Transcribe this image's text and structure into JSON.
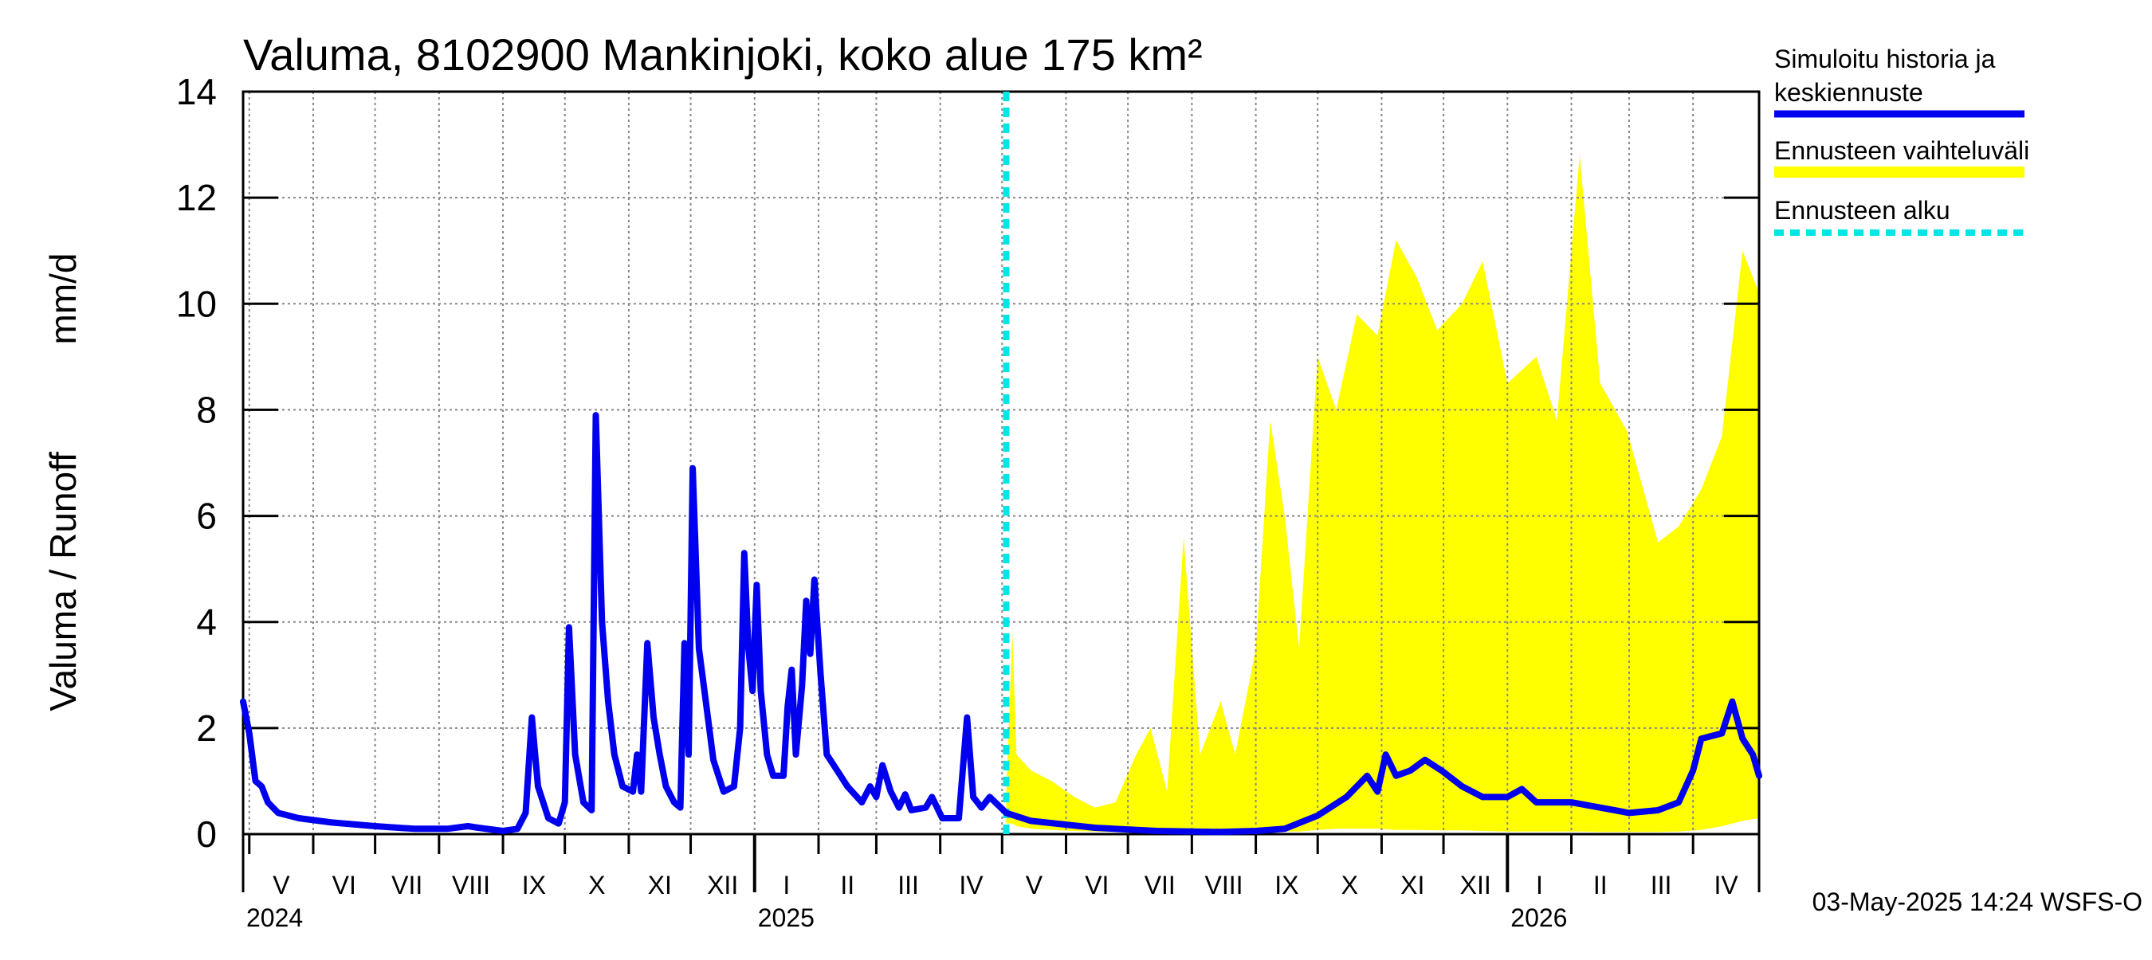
{
  "chart_data": {
    "type": "line",
    "title": "Valuma, 8102900 Mankinjoki, koko alue 175 km²",
    "ylabel_left": "Valuma / Runoff",
    "ylabel_unit": "mm/d",
    "ylim": [
      0,
      14
    ],
    "yticks": [
      "0",
      "2",
      "4",
      "6",
      "8",
      "10",
      "12",
      "14"
    ],
    "grid": true,
    "x_start": "2024-04-28",
    "x_end": "2026-05-03",
    "forecast_start": "2025-05-03",
    "months": [
      {
        "label": "V",
        "start": "2024-05-01"
      },
      {
        "label": "VI",
        "start": "2024-06-01"
      },
      {
        "label": "VII",
        "start": "2024-07-01"
      },
      {
        "label": "VIII",
        "start": "2024-08-01"
      },
      {
        "label": "IX",
        "start": "2024-09-01"
      },
      {
        "label": "X",
        "start": "2024-10-01"
      },
      {
        "label": "XI",
        "start": "2024-11-01"
      },
      {
        "label": "XII",
        "start": "2024-12-01"
      },
      {
        "label": "I",
        "start": "2025-01-01"
      },
      {
        "label": "II",
        "start": "2025-02-01"
      },
      {
        "label": "III",
        "start": "2025-03-01"
      },
      {
        "label": "IV",
        "start": "2025-04-01"
      },
      {
        "label": "V",
        "start": "2025-05-01"
      },
      {
        "label": "VI",
        "start": "2025-06-01"
      },
      {
        "label": "VII",
        "start": "2025-07-01"
      },
      {
        "label": "VIII",
        "start": "2025-08-01"
      },
      {
        "label": "IX",
        "start": "2025-09-01"
      },
      {
        "label": "X",
        "start": "2025-10-01"
      },
      {
        "label": "XI",
        "start": "2025-11-01"
      },
      {
        "label": "XII",
        "start": "2025-12-01"
      },
      {
        "label": "I",
        "start": "2026-01-01"
      },
      {
        "label": "II",
        "start": "2026-02-01"
      },
      {
        "label": "III",
        "start": "2026-03-01"
      },
      {
        "label": "IV",
        "start": "2026-04-01"
      }
    ],
    "years": [
      {
        "label": "2024",
        "date": "2024-05-01"
      },
      {
        "label": "2025",
        "date": "2025-01-01"
      },
      {
        "label": "2026",
        "date": "2026-01-01"
      }
    ],
    "series": [
      {
        "name": "Simuloitu historia ja keskiennuste",
        "color": "#0000ee",
        "points": [
          [
            "2024-04-28",
            2.5
          ],
          [
            "2024-05-01",
            1.9
          ],
          [
            "2024-05-04",
            1.0
          ],
          [
            "2024-05-07",
            0.9
          ],
          [
            "2024-05-10",
            0.6
          ],
          [
            "2024-05-15",
            0.4
          ],
          [
            "2024-05-25",
            0.3
          ],
          [
            "2024-06-10",
            0.22
          ],
          [
            "2024-07-01",
            0.15
          ],
          [
            "2024-07-20",
            0.1
          ],
          [
            "2024-08-05",
            0.1
          ],
          [
            "2024-08-15",
            0.15
          ],
          [
            "2024-08-20",
            0.12
          ],
          [
            "2024-09-01",
            0.06
          ],
          [
            "2024-09-08",
            0.1
          ],
          [
            "2024-09-12",
            0.4
          ],
          [
            "2024-09-15",
            2.2
          ],
          [
            "2024-09-18",
            0.9
          ],
          [
            "2024-09-23",
            0.3
          ],
          [
            "2024-09-28",
            0.2
          ],
          [
            "2024-10-01",
            0.6
          ],
          [
            "2024-10-03",
            3.9
          ],
          [
            "2024-10-06",
            1.5
          ],
          [
            "2024-10-10",
            0.6
          ],
          [
            "2024-10-14",
            0.45
          ],
          [
            "2024-10-16",
            7.9
          ],
          [
            "2024-10-19",
            4.0
          ],
          [
            "2024-10-22",
            2.5
          ],
          [
            "2024-10-25",
            1.5
          ],
          [
            "2024-10-29",
            0.9
          ],
          [
            "2024-11-03",
            0.8
          ],
          [
            "2024-11-05",
            1.5
          ],
          [
            "2024-11-07",
            0.8
          ],
          [
            "2024-11-10",
            3.6
          ],
          [
            "2024-11-13",
            2.2
          ],
          [
            "2024-11-16",
            1.5
          ],
          [
            "2024-11-19",
            0.9
          ],
          [
            "2024-11-23",
            0.6
          ],
          [
            "2024-11-26",
            0.5
          ],
          [
            "2024-11-28",
            3.6
          ],
          [
            "2024-11-30",
            1.5
          ],
          [
            "2024-12-02",
            6.9
          ],
          [
            "2024-12-05",
            3.5
          ],
          [
            "2024-12-08",
            2.6
          ],
          [
            "2024-12-12",
            1.4
          ],
          [
            "2024-12-17",
            0.8
          ],
          [
            "2024-12-22",
            0.9
          ],
          [
            "2024-12-25",
            2.0
          ],
          [
            "2024-12-27",
            5.3
          ],
          [
            "2024-12-29",
            3.5
          ],
          [
            "2024-12-31",
            2.7
          ],
          [
            "2025-01-02",
            4.7
          ],
          [
            "2025-01-04",
            2.7
          ],
          [
            "2025-01-07",
            1.5
          ],
          [
            "2025-01-10",
            1.1
          ],
          [
            "2025-01-15",
            1.1
          ],
          [
            "2025-01-17",
            2.4
          ],
          [
            "2025-01-19",
            3.1
          ],
          [
            "2025-01-21",
            1.5
          ],
          [
            "2025-01-24",
            2.8
          ],
          [
            "2025-01-26",
            4.4
          ],
          [
            "2025-01-28",
            3.4
          ],
          [
            "2025-01-30",
            4.8
          ],
          [
            "2025-02-02",
            3.0
          ],
          [
            "2025-02-05",
            1.5
          ],
          [
            "2025-02-10",
            1.2
          ],
          [
            "2025-02-15",
            0.9
          ],
          [
            "2025-02-22",
            0.6
          ],
          [
            "2025-02-26",
            0.9
          ],
          [
            "2025-03-01",
            0.7
          ],
          [
            "2025-03-04",
            1.3
          ],
          [
            "2025-03-08",
            0.8
          ],
          [
            "2025-03-12",
            0.5
          ],
          [
            "2025-03-15",
            0.75
          ],
          [
            "2025-03-18",
            0.45
          ],
          [
            "2025-03-25",
            0.5
          ],
          [
            "2025-03-28",
            0.7
          ],
          [
            "2025-04-02",
            0.3
          ],
          [
            "2025-04-10",
            0.3
          ],
          [
            "2025-04-14",
            2.2
          ],
          [
            "2025-04-17",
            0.7
          ],
          [
            "2025-04-21",
            0.5
          ],
          [
            "2025-04-25",
            0.7
          ],
          [
            "2025-05-03",
            0.4
          ],
          [
            "2025-05-15",
            0.25
          ],
          [
            "2025-06-15",
            0.12
          ],
          [
            "2025-07-15",
            0.06
          ],
          [
            "2025-08-15",
            0.04
          ],
          [
            "2025-09-01",
            0.06
          ],
          [
            "2025-09-15",
            0.1
          ],
          [
            "2025-10-01",
            0.35
          ],
          [
            "2025-10-15",
            0.7
          ],
          [
            "2025-10-25",
            1.1
          ],
          [
            "2025-10-30",
            0.8
          ],
          [
            "2025-11-03",
            1.5
          ],
          [
            "2025-11-08",
            1.1
          ],
          [
            "2025-11-15",
            1.2
          ],
          [
            "2025-11-22",
            1.4
          ],
          [
            "2025-11-30",
            1.2
          ],
          [
            "2025-12-10",
            0.9
          ],
          [
            "2025-12-20",
            0.7
          ],
          [
            "2026-01-01",
            0.7
          ],
          [
            "2026-01-08",
            0.85
          ],
          [
            "2026-01-15",
            0.6
          ],
          [
            "2026-02-01",
            0.6
          ],
          [
            "2026-02-15",
            0.5
          ],
          [
            "2026-03-01",
            0.4
          ],
          [
            "2026-03-15",
            0.45
          ],
          [
            "2026-03-25",
            0.6
          ],
          [
            "2026-04-01",
            1.2
          ],
          [
            "2026-04-05",
            1.8
          ],
          [
            "2026-04-15",
            1.9
          ],
          [
            "2026-04-20",
            2.5
          ],
          [
            "2026-04-25",
            1.8
          ],
          [
            "2026-04-30",
            1.5
          ],
          [
            "2026-05-03",
            1.1
          ]
        ]
      },
      {
        "name": "Ennusteen vaihteluväli",
        "color": "#ffff00",
        "type": "area",
        "points": [
          [
            "2025-05-03",
            0.2,
            0.8
          ],
          [
            "2025-05-06",
            0.2,
            3.8
          ],
          [
            "2025-05-08",
            0.15,
            1.5
          ],
          [
            "2025-05-15",
            0.1,
            1.2
          ],
          [
            "2025-05-25",
            0.08,
            1.0
          ],
          [
            "2025-06-05",
            0.06,
            0.7
          ],
          [
            "2025-06-15",
            0.05,
            0.5
          ],
          [
            "2025-06-25",
            0.04,
            0.6
          ],
          [
            "2025-07-05",
            0.03,
            1.5
          ],
          [
            "2025-07-12",
            0.03,
            2.0
          ],
          [
            "2025-07-20",
            0.03,
            0.8
          ],
          [
            "2025-07-28",
            0.02,
            5.6
          ],
          [
            "2025-08-05",
            0.02,
            1.5
          ],
          [
            "2025-08-15",
            0.02,
            2.5
          ],
          [
            "2025-08-22",
            0.02,
            1.5
          ],
          [
            "2025-09-01",
            0.03,
            3.5
          ],
          [
            "2025-09-08",
            0.03,
            7.8
          ],
          [
            "2025-09-15",
            0.05,
            6.0
          ],
          [
            "2025-09-22",
            0.05,
            3.5
          ],
          [
            "2025-10-01",
            0.08,
            9.0
          ],
          [
            "2025-10-10",
            0.1,
            8.0
          ],
          [
            "2025-10-20",
            0.1,
            9.8
          ],
          [
            "2025-10-30",
            0.1,
            9.4
          ],
          [
            "2025-11-08",
            0.08,
            11.2
          ],
          [
            "2025-11-18",
            0.08,
            10.5
          ],
          [
            "2025-11-28",
            0.07,
            9.5
          ],
          [
            "2025-12-10",
            0.07,
            10.0
          ],
          [
            "2025-12-20",
            0.06,
            10.8
          ],
          [
            "2026-01-01",
            0.05,
            8.5
          ],
          [
            "2026-01-15",
            0.05,
            9.0
          ],
          [
            "2026-01-25",
            0.05,
            7.8
          ],
          [
            "2026-02-05",
            0.05,
            12.8
          ],
          [
            "2026-02-15",
            0.04,
            8.5
          ],
          [
            "2026-02-28",
            0.04,
            7.6
          ],
          [
            "2026-03-15",
            0.04,
            5.5
          ],
          [
            "2026-03-25",
            0.05,
            5.8
          ],
          [
            "2026-04-05",
            0.08,
            6.5
          ],
          [
            "2026-04-15",
            0.15,
            7.5
          ],
          [
            "2026-04-25",
            0.25,
            11.0
          ],
          [
            "2026-05-03",
            0.3,
            10.2
          ]
        ]
      }
    ],
    "legend": [
      {
        "label_line1": "Simuloitu historia ja",
        "label_line2": "keskiennuste",
        "color": "#0000ee",
        "style": "solid"
      },
      {
        "label_line1": "Ennusteen vaihteluväli",
        "label_line2": "",
        "color": "#ffff00",
        "style": "solid"
      },
      {
        "label_line1": "Ennusteen alku",
        "label_line2": "",
        "color": "#00e5e5",
        "style": "dashed"
      }
    ],
    "legend_position": "right",
    "forecast_line_color": "#00e5e5"
  },
  "footer": {
    "timestamp": "03-May-2025 14:24 WSFS-O"
  }
}
